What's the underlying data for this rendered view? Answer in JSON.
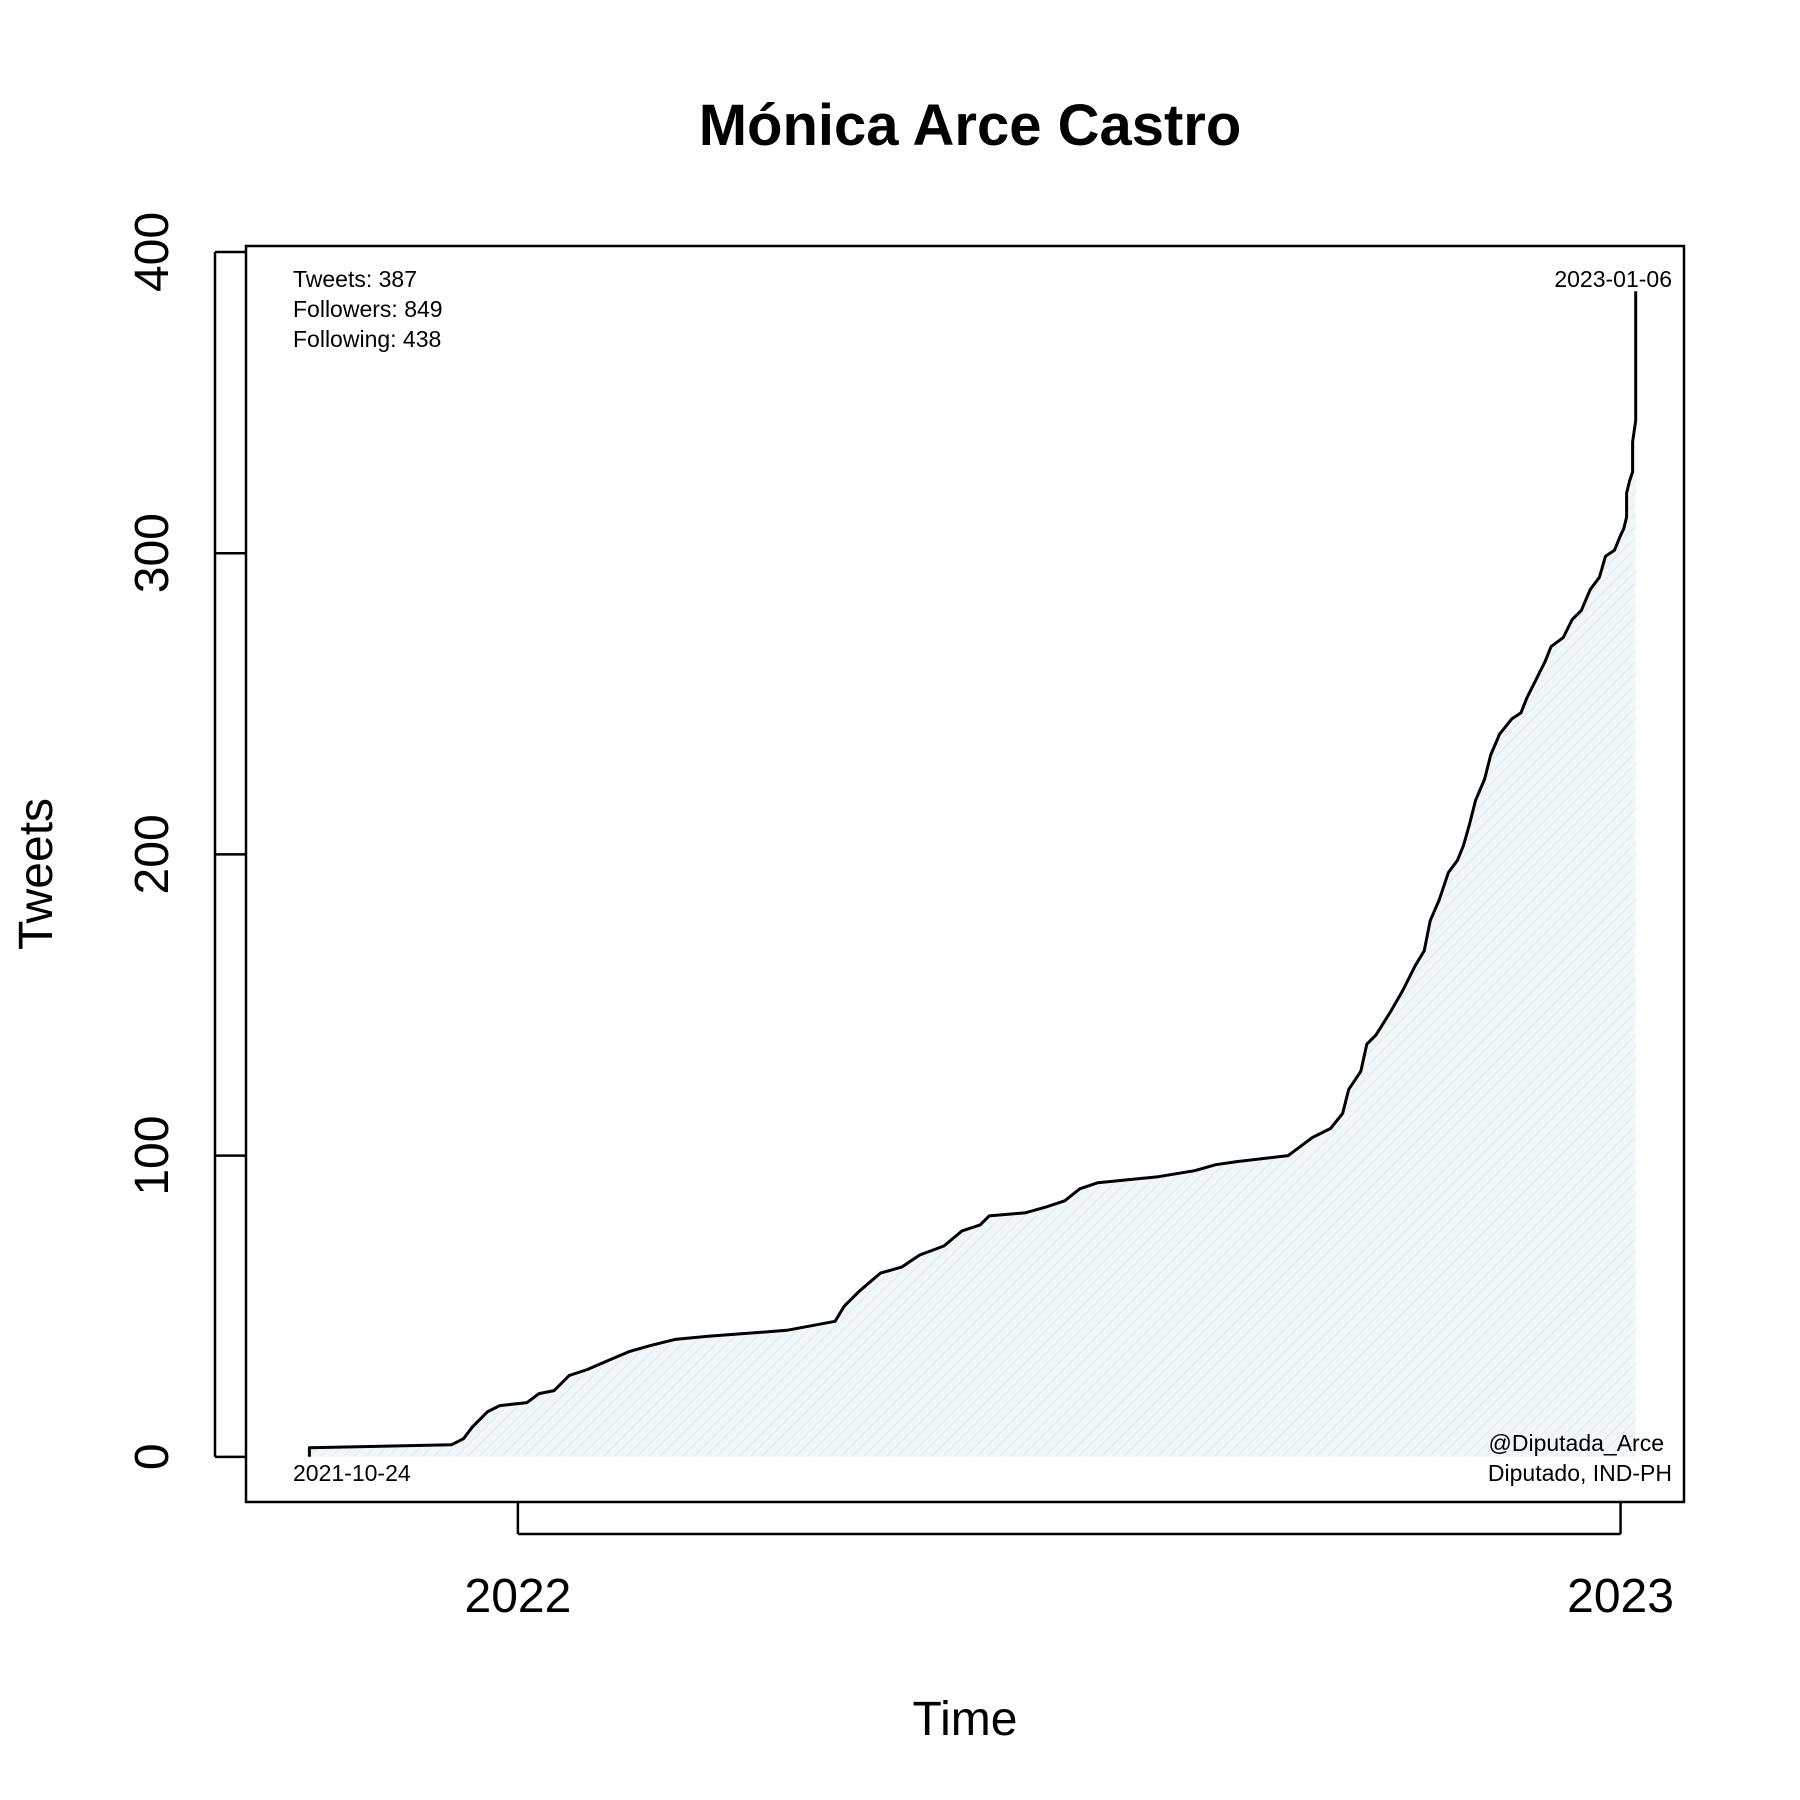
{
  "chart_data": {
    "type": "area",
    "title": "Mónica Arce Castro",
    "xlabel": "Time",
    "ylabel": "Tweets",
    "x_axis": {
      "type": "date",
      "range": [
        "2021-10-03",
        "2023-01-22"
      ],
      "ticks": [
        {
          "value": "2022-01-01",
          "label": "2022"
        },
        {
          "value": "2023-01-01",
          "label": "2023"
        }
      ]
    },
    "y_axis": {
      "range": [
        -15,
        402
      ],
      "ticks": [
        {
          "value": 0,
          "label": "0"
        },
        {
          "value": 100,
          "label": "100"
        },
        {
          "value": 200,
          "label": "200"
        },
        {
          "value": 300,
          "label": "300"
        },
        {
          "value": 400,
          "label": "400"
        }
      ]
    },
    "grid": false,
    "fill_color": "#e6f1f4",
    "line_color": "#000000",
    "series": [
      {
        "points": [
          [
            "2021-10-24",
            0
          ],
          [
            "2021-10-24",
            3
          ],
          [
            "2021-12-10",
            4
          ],
          [
            "2021-12-14",
            6
          ],
          [
            "2021-12-17",
            10
          ],
          [
            "2021-12-22",
            15
          ],
          [
            "2021-12-26",
            17
          ],
          [
            "2022-01-04",
            18
          ],
          [
            "2022-01-08",
            21
          ],
          [
            "2022-01-13",
            22
          ],
          [
            "2022-01-18",
            27
          ],
          [
            "2022-01-24",
            29
          ],
          [
            "2022-01-31",
            32
          ],
          [
            "2022-02-07",
            35
          ],
          [
            "2022-02-14",
            37
          ],
          [
            "2022-02-22",
            39
          ],
          [
            "2022-03-05",
            40
          ],
          [
            "2022-03-31",
            42
          ],
          [
            "2022-04-16",
            45
          ],
          [
            "2022-04-19",
            50
          ],
          [
            "2022-04-24",
            55
          ],
          [
            "2022-05-01",
            61
          ],
          [
            "2022-05-08",
            63
          ],
          [
            "2022-05-14",
            67
          ],
          [
            "2022-05-22",
            70
          ],
          [
            "2022-05-28",
            75
          ],
          [
            "2022-06-03",
            77
          ],
          [
            "2022-06-06",
            80
          ],
          [
            "2022-06-18",
            81
          ],
          [
            "2022-06-25",
            83
          ],
          [
            "2022-07-01",
            85
          ],
          [
            "2022-07-06",
            89
          ],
          [
            "2022-07-12",
            91
          ],
          [
            "2022-08-01",
            93
          ],
          [
            "2022-08-13",
            95
          ],
          [
            "2022-08-20",
            97
          ],
          [
            "2022-08-27",
            98
          ],
          [
            "2022-09-13",
            100
          ],
          [
            "2022-09-21",
            106
          ],
          [
            "2022-09-27",
            109
          ],
          [
            "2022-10-01",
            114
          ],
          [
            "2022-10-03",
            122
          ],
          [
            "2022-10-07",
            128
          ],
          [
            "2022-10-09",
            137
          ],
          [
            "2022-10-12",
            140
          ],
          [
            "2022-10-17",
            148
          ],
          [
            "2022-10-21",
            155
          ],
          [
            "2022-10-25",
            163
          ],
          [
            "2022-10-28",
            168
          ],
          [
            "2022-10-30",
            178
          ],
          [
            "2022-11-02",
            185
          ],
          [
            "2022-11-05",
            194
          ],
          [
            "2022-11-08",
            198
          ],
          [
            "2022-11-10",
            203
          ],
          [
            "2022-11-12",
            210
          ],
          [
            "2022-11-14",
            218
          ],
          [
            "2022-11-17",
            225
          ],
          [
            "2022-11-19",
            233
          ],
          [
            "2022-11-22",
            240
          ],
          [
            "2022-11-26",
            245
          ],
          [
            "2022-11-29",
            247
          ],
          [
            "2022-12-01",
            252
          ],
          [
            "2022-12-04",
            258
          ],
          [
            "2022-12-07",
            264
          ],
          [
            "2022-12-09",
            269
          ],
          [
            "2022-12-13",
            272
          ],
          [
            "2022-12-16",
            278
          ],
          [
            "2022-12-19",
            281
          ],
          [
            "2022-12-22",
            288
          ],
          [
            "2022-12-25",
            292
          ],
          [
            "2022-12-27",
            299
          ],
          [
            "2022-12-30",
            301
          ],
          [
            "2023-01-01",
            306
          ],
          [
            "2023-01-02",
            308
          ],
          [
            "2023-01-03",
            312
          ],
          [
            "2023-01-03",
            320
          ],
          [
            "2023-01-04",
            324
          ],
          [
            "2023-01-05",
            327
          ],
          [
            "2023-01-05",
            333
          ],
          [
            "2023-01-05",
            337
          ],
          [
            "2023-01-06",
            344
          ],
          [
            "2023-01-06",
            350
          ],
          [
            "2023-01-06",
            354
          ],
          [
            "2023-01-06",
            359
          ],
          [
            "2023-01-06",
            365
          ],
          [
            "2023-01-06",
            371
          ],
          [
            "2023-01-06",
            376
          ],
          [
            "2023-01-06",
            381
          ],
          [
            "2023-01-06",
            386
          ],
          [
            "2023-01-06",
            387
          ]
        ]
      }
    ],
    "annotations": {
      "stats": [
        "Tweets: 387",
        "Followers: 849",
        "Following: 438"
      ],
      "end_date": "2023-01-06",
      "start_date": "2021-10-24",
      "handle": "@Diputada_Arce",
      "role": "Diputado, IND-PH"
    }
  }
}
